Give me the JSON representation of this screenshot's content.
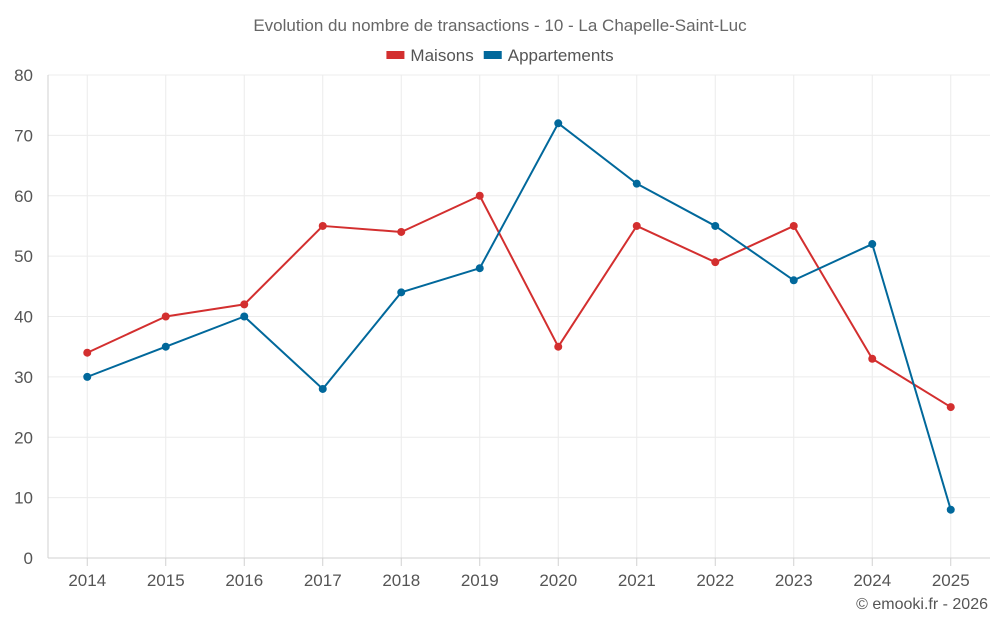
{
  "chart_data": {
    "type": "line",
    "title": "Evolution du nombre de transactions - 10 - La Chapelle-Saint-Luc",
    "categories": [
      "2014",
      "2015",
      "2016",
      "2017",
      "2018",
      "2019",
      "2020",
      "2021",
      "2022",
      "2023",
      "2024",
      "2025"
    ],
    "series": [
      {
        "name": "Maisons",
        "color": "#d32f2f",
        "values": [
          34,
          40,
          42,
          55,
          54,
          60,
          35,
          55,
          49,
          55,
          33,
          25
        ]
      },
      {
        "name": "Appartements",
        "color": "#01689b",
        "values": [
          30,
          35,
          40,
          28,
          44,
          48,
          72,
          62,
          55,
          46,
          52,
          8
        ]
      }
    ],
    "ylim": [
      0,
      80
    ],
    "yticks": [
      0,
      10,
      20,
      30,
      40,
      50,
      60,
      70,
      80
    ],
    "xlabel": "",
    "ylabel": "",
    "grid": true,
    "legend": "top-center"
  },
  "credit": "© emooki.fr - 2026"
}
